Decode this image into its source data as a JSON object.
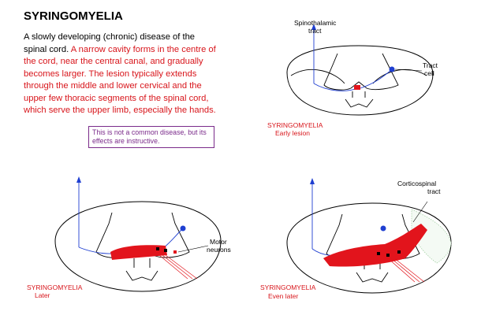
{
  "title": "SYRINGOMYELIA",
  "description": {
    "intro": "A slowly developing (chronic) disease of the spinal cord.",
    "detail": "A narrow cavity forms in the centre of the cord, near the central canal, and gradually becomes larger. The lesion typically extends through the middle and lower cervical and the upper few thoracic segments of the spinal cord, which serve the upper limb, especially the hands."
  },
  "note": "This is not a common disease, but its effects are instructive.",
  "colors": {
    "lesion": "#e2141c",
    "tract_cell": "#1f3fd1",
    "caption": "#d8151b",
    "note_border": "#7a2a8a"
  },
  "panels": {
    "early": {
      "caption_title": "SYRINGOMYELIA",
      "caption_stage": "Early lesion",
      "label_spinothalamic_1": "Spinothalamic",
      "label_spinothalamic_2": "tract",
      "label_tract_cell_1": "Tract",
      "label_tract_cell_2": "cell"
    },
    "later": {
      "caption_title": "SYRINGOMYELIA",
      "caption_stage": "Later",
      "label_motor_1": "Motor",
      "label_motor_2": "neurons"
    },
    "even_later": {
      "caption_title": "SYRINGOMYELIA",
      "caption_stage": "Even later",
      "label_corticospinal_1": "Corticospinal",
      "label_corticospinal_2": "tract"
    }
  }
}
